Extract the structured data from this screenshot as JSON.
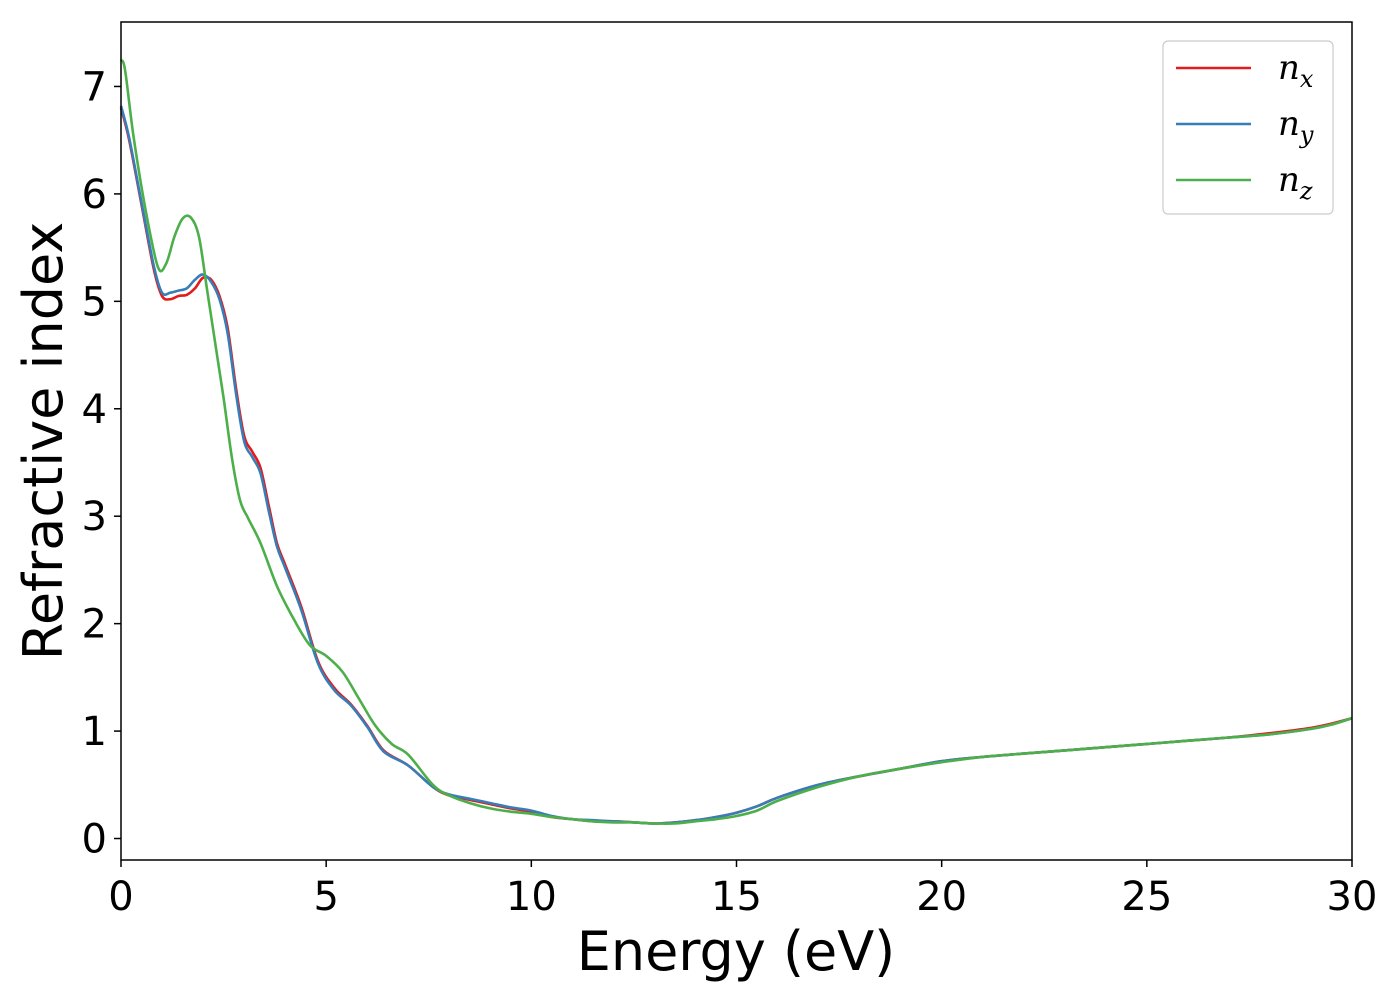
{
  "chart_data": {
    "type": "line",
    "title": "",
    "xlabel": "Energy (eV)",
    "ylabel": "Refractive index",
    "xlim": [
      0,
      30
    ],
    "ylim": [
      -0.2,
      7.6
    ],
    "xticks": [
      0,
      5,
      10,
      15,
      20,
      25,
      30
    ],
    "yticks": [
      0,
      1,
      2,
      3,
      4,
      5,
      6,
      7
    ],
    "grid": false,
    "legend_position": "top-right",
    "series": [
      {
        "name": "n",
        "subscript": "x",
        "color": "#e41a1c",
        "x": [
          0,
          0.2,
          0.5,
          0.8,
          1.0,
          1.2,
          1.4,
          1.6,
          1.8,
          2.0,
          2.2,
          2.4,
          2.6,
          2.8,
          3.0,
          3.2,
          3.4,
          3.6,
          3.8,
          4.0,
          4.4,
          4.8,
          5.2,
          5.6,
          6.0,
          6.4,
          7.0,
          7.6,
          8.0,
          8.5,
          9.0,
          9.5,
          10.0,
          10.5,
          11.0,
          11.5,
          12.0,
          12.5,
          13.0,
          13.5,
          14.0,
          14.5,
          15.0,
          15.5,
          16.0,
          17.0,
          18.0,
          19.0,
          20.0,
          21.0,
          22.0,
          23.0,
          24.0,
          25.0,
          26.0,
          27.0,
          28.0,
          29.0,
          29.5,
          30.0
        ],
        "y": [
          6.8,
          6.5,
          5.9,
          5.3,
          5.05,
          5.02,
          5.05,
          5.06,
          5.12,
          5.22,
          5.2,
          5.05,
          4.75,
          4.2,
          3.75,
          3.6,
          3.45,
          3.1,
          2.75,
          2.55,
          2.15,
          1.65,
          1.4,
          1.25,
          1.05,
          0.82,
          0.68,
          0.48,
          0.4,
          0.36,
          0.32,
          0.28,
          0.25,
          0.2,
          0.18,
          0.16,
          0.16,
          0.15,
          0.14,
          0.15,
          0.17,
          0.2,
          0.24,
          0.3,
          0.38,
          0.5,
          0.58,
          0.65,
          0.72,
          0.76,
          0.79,
          0.82,
          0.85,
          0.88,
          0.91,
          0.94,
          0.98,
          1.03,
          1.07,
          1.12
        ]
      },
      {
        "name": "n",
        "subscript": "y",
        "color": "#377eb8",
        "x": [
          0,
          0.2,
          0.5,
          0.8,
          1.0,
          1.2,
          1.4,
          1.6,
          1.8,
          2.0,
          2.2,
          2.4,
          2.6,
          2.8,
          3.0,
          3.2,
          3.4,
          3.6,
          3.8,
          4.0,
          4.4,
          4.8,
          5.2,
          5.6,
          6.0,
          6.4,
          7.0,
          7.6,
          8.0,
          8.5,
          9.0,
          9.5,
          10.0,
          10.5,
          11.0,
          11.5,
          12.0,
          12.5,
          13.0,
          13.5,
          14.0,
          14.5,
          15.0,
          15.5,
          16.0,
          17.0,
          18.0,
          19.0,
          20.0,
          21.0,
          22.0,
          23.0,
          24.0,
          25.0,
          26.0,
          27.0,
          28.0,
          29.0,
          29.5,
          30.0
        ],
        "y": [
          6.82,
          6.52,
          5.92,
          5.33,
          5.08,
          5.08,
          5.1,
          5.12,
          5.2,
          5.25,
          5.18,
          5.02,
          4.7,
          4.15,
          3.7,
          3.55,
          3.4,
          3.05,
          2.72,
          2.52,
          2.12,
          1.63,
          1.38,
          1.24,
          1.04,
          0.81,
          0.68,
          0.48,
          0.41,
          0.37,
          0.33,
          0.29,
          0.26,
          0.21,
          0.18,
          0.17,
          0.16,
          0.15,
          0.14,
          0.15,
          0.17,
          0.2,
          0.24,
          0.3,
          0.38,
          0.5,
          0.58,
          0.65,
          0.72,
          0.76,
          0.79,
          0.82,
          0.85,
          0.88,
          0.91,
          0.94,
          0.97,
          1.02,
          1.06,
          1.12
        ]
      },
      {
        "name": "n",
        "subscript": "z",
        "color": "#4daf4a",
        "x": [
          0,
          0.1,
          0.3,
          0.6,
          0.9,
          1.1,
          1.3,
          1.5,
          1.7,
          1.9,
          2.1,
          2.3,
          2.5,
          2.7,
          2.9,
          3.1,
          3.4,
          3.8,
          4.2,
          4.6,
          5.0,
          5.4,
          5.8,
          6.2,
          6.6,
          7.0,
          7.6,
          8.0,
          8.5,
          9.0,
          9.5,
          10.0,
          10.5,
          11.0,
          11.5,
          12.0,
          12.5,
          13.0,
          13.5,
          14.0,
          14.5,
          15.0,
          15.5,
          16.0,
          17.0,
          18.0,
          19.0,
          20.0,
          21.0,
          22.0,
          23.0,
          24.0,
          25.0,
          26.0,
          27.0,
          28.0,
          29.0,
          29.5,
          30.0
        ],
        "y": [
          7.25,
          7.15,
          6.55,
          5.85,
          5.32,
          5.35,
          5.6,
          5.77,
          5.78,
          5.6,
          5.1,
          4.6,
          4.1,
          3.55,
          3.15,
          2.98,
          2.75,
          2.35,
          2.05,
          1.8,
          1.7,
          1.55,
          1.3,
          1.05,
          0.88,
          0.78,
          0.5,
          0.4,
          0.33,
          0.28,
          0.25,
          0.23,
          0.2,
          0.18,
          0.16,
          0.15,
          0.15,
          0.14,
          0.14,
          0.16,
          0.18,
          0.21,
          0.26,
          0.35,
          0.48,
          0.58,
          0.65,
          0.71,
          0.76,
          0.79,
          0.82,
          0.85,
          0.88,
          0.91,
          0.94,
          0.97,
          1.02,
          1.06,
          1.12
        ]
      }
    ]
  }
}
